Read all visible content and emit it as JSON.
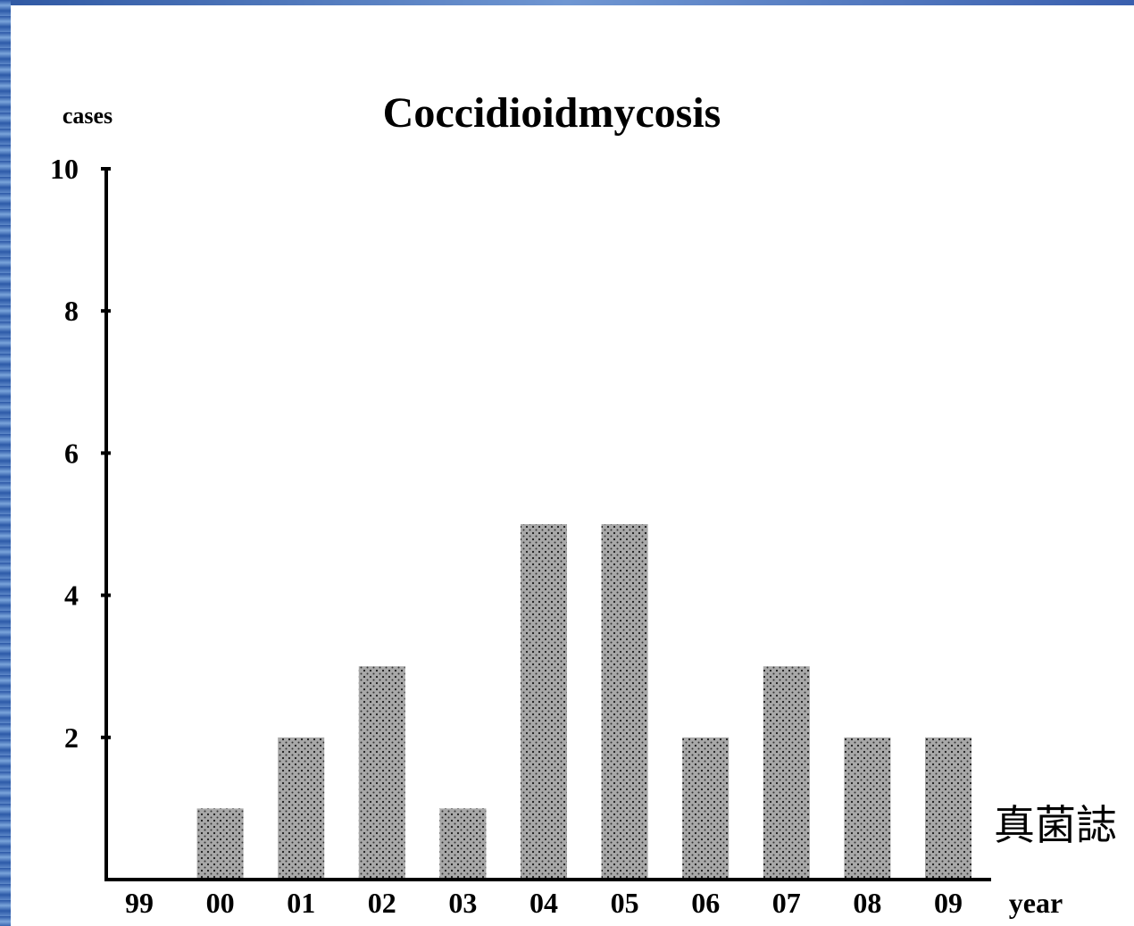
{
  "chart_data": {
    "type": "bar",
    "title": "Coccidioidmycosis",
    "ylabel": "cases",
    "xlabel": "year",
    "categories": [
      "99",
      "00",
      "01",
      "02",
      "03",
      "04",
      "05",
      "06",
      "07",
      "08",
      "09"
    ],
    "values": [
      0,
      1,
      2,
      3,
      1,
      5,
      5,
      2,
      3,
      2,
      2
    ],
    "ylim": [
      0,
      10
    ],
    "yticks": [
      2,
      4,
      6,
      8,
      10
    ],
    "grid": false,
    "bar_color": "#a8a8a8",
    "bar_dot_color": "#1a1a1a"
  },
  "annotation": {
    "text": "真菌誌"
  }
}
